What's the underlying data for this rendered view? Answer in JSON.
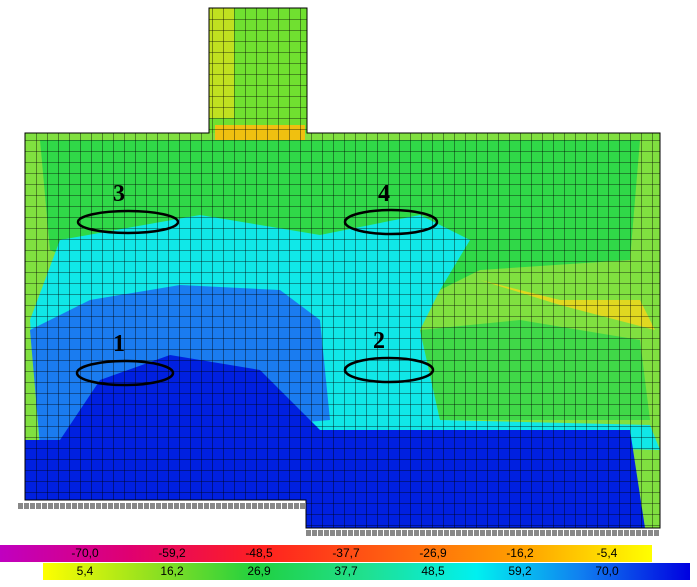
{
  "zone_labels": [
    "1",
    "2",
    "3",
    "4"
  ],
  "legend": {
    "negative": [
      "-70,0",
      "-59,2",
      "-48,5",
      "-37,7",
      "-26,9",
      "-16,2",
      "-5,4"
    ],
    "positive": [
      "5,4",
      "16,2",
      "26,9",
      "37,7",
      "48,5",
      "59,2",
      "70,0"
    ]
  }
}
